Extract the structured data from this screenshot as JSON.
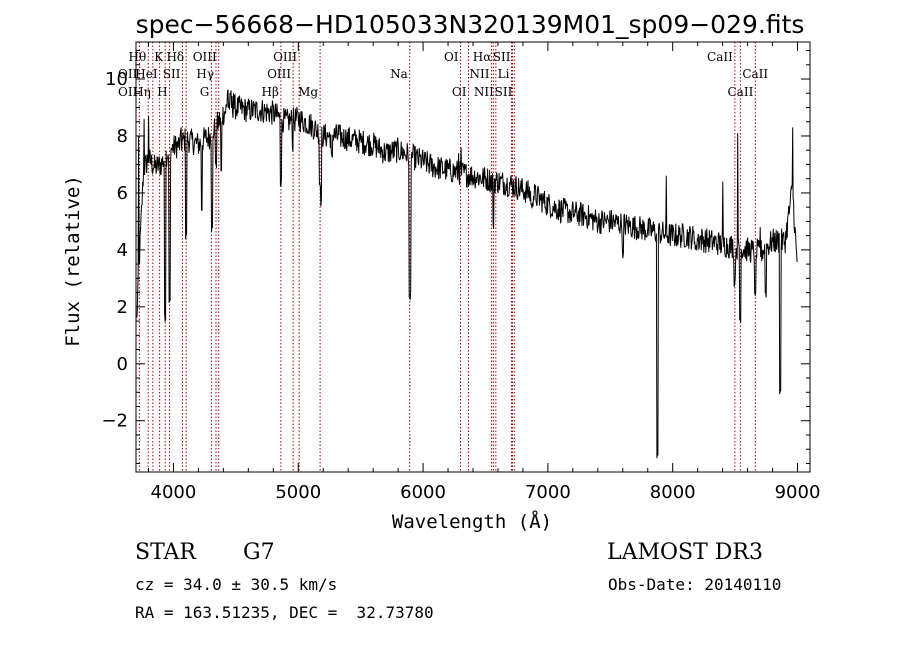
{
  "chart_data": {
    "type": "line",
    "title": "spec−56668−HD105033N320139M01_sp09−029.fits",
    "xlabel": "Wavelength (Å)",
    "ylabel": "Flux (relative)",
    "xlim": [
      3700,
      9100
    ],
    "ylim": [
      -3.8,
      11.3
    ],
    "xticks": [
      4000,
      5000,
      6000,
      7000,
      8000,
      9000
    ],
    "yticks": [
      -2,
      0,
      2,
      4,
      6,
      8,
      10
    ],
    "ytick_labels": [
      "−2",
      "0",
      "2",
      "4",
      "6",
      "8",
      "10"
    ],
    "grid": false,
    "line_color": "#000000",
    "marker_color": "#aa0000",
    "spectrum_knots": [
      [
        3700,
        1.0
      ],
      [
        3760,
        6.8
      ],
      [
        3800,
        7.2
      ],
      [
        3850,
        6.9
      ],
      [
        3900,
        7.0
      ],
      [
        3950,
        7.4
      ],
      [
        4000,
        7.6
      ],
      [
        4050,
        7.7
      ],
      [
        4100,
        7.9
      ],
      [
        4150,
        7.8
      ],
      [
        4200,
        7.7
      ],
      [
        4250,
        7.9
      ],
      [
        4300,
        8.0
      ],
      [
        4350,
        8.4
      ],
      [
        4400,
        8.8
      ],
      [
        4450,
        9.1
      ],
      [
        4500,
        9.0
      ],
      [
        4600,
        8.9
      ],
      [
        4700,
        8.9
      ],
      [
        4800,
        8.8
      ],
      [
        4900,
        8.5
      ],
      [
        5000,
        8.6
      ],
      [
        5100,
        8.4
      ],
      [
        5200,
        8.0
      ],
      [
        5300,
        8.0
      ],
      [
        5400,
        7.9
      ],
      [
        5500,
        7.8
      ],
      [
        5600,
        7.7
      ],
      [
        5700,
        7.4
      ],
      [
        5800,
        7.5
      ],
      [
        5900,
        7.3
      ],
      [
        6000,
        7.1
      ],
      [
        6100,
        6.9
      ],
      [
        6200,
        6.8
      ],
      [
        6300,
        6.7
      ],
      [
        6400,
        6.6
      ],
      [
        6500,
        6.5
      ],
      [
        6600,
        6.4
      ],
      [
        6700,
        6.3
      ],
      [
        6800,
        6.1
      ],
      [
        6900,
        5.9
      ],
      [
        7000,
        5.6
      ],
      [
        7100,
        5.4
      ],
      [
        7200,
        5.3
      ],
      [
        7300,
        5.2
      ],
      [
        7400,
        5.0
      ],
      [
        7500,
        5.0
      ],
      [
        7600,
        4.9
      ],
      [
        7700,
        4.8
      ],
      [
        7800,
        4.7
      ],
      [
        7900,
        4.6
      ],
      [
        8000,
        4.5
      ],
      [
        8100,
        4.5
      ],
      [
        8200,
        4.4
      ],
      [
        8300,
        4.3
      ],
      [
        8400,
        4.2
      ],
      [
        8500,
        4.1
      ],
      [
        8600,
        4.0
      ],
      [
        8700,
        3.9
      ],
      [
        8800,
        4.3
      ],
      [
        8900,
        4.3
      ],
      [
        8960,
        6.2
      ],
      [
        9000,
        3.2
      ]
    ],
    "spectrum_dips": [
      [
        3934,
        1.5
      ],
      [
        3969,
        2.0
      ],
      [
        4101,
        4.3
      ],
      [
        4227,
        5.3
      ],
      [
        4308,
        4.6
      ],
      [
        4340,
        6.8
      ],
      [
        4383,
        6.6
      ],
      [
        4861,
        6.2
      ],
      [
        4955,
        7.4
      ],
      [
        5172,
        6.2
      ],
      [
        5183,
        5.5
      ],
      [
        5270,
        7.2
      ],
      [
        5892,
        2.1
      ],
      [
        5896,
        2.3
      ],
      [
        6563,
        4.7
      ],
      [
        6870,
        5.4
      ],
      [
        7190,
        5.2
      ],
      [
        7600,
        3.7
      ],
      [
        7878,
        -3.4
      ],
      [
        8190,
        3.9
      ],
      [
        8498,
        2.7
      ],
      [
        8542,
        1.4
      ],
      [
        8662,
        2.2
      ],
      [
        8745,
        2.3
      ],
      [
        8860,
        -1.1
      ],
      [
        9005,
        0.2
      ]
    ],
    "spectrum_spikes": [
      [
        3720,
        8.0
      ],
      [
        3765,
        8.6
      ],
      [
        3800,
        8.7
      ],
      [
        4060,
        8.3
      ],
      [
        4435,
        9.6
      ],
      [
        4460,
        9.6
      ],
      [
        4480,
        9.5
      ],
      [
        5320,
        8.4
      ],
      [
        6285,
        7.4
      ],
      [
        6305,
        7.6
      ],
      [
        7950,
        6.6
      ],
      [
        8400,
        6.4
      ],
      [
        8520,
        8.1
      ],
      [
        8700,
        4.8
      ],
      [
        8960,
        8.3
      ]
    ],
    "spectrum_noise": 0.45,
    "line_markers": [
      {
        "label": "Hθ",
        "wavelength": 3798,
        "row": 1,
        "side": "left"
      },
      {
        "label": "OII",
        "wavelength": 3727,
        "row": 2,
        "side": "left"
      },
      {
        "label": "OII",
        "wavelength": 3727,
        "row": 3,
        "side": "left"
      },
      {
        "label": "Hη",
        "wavelength": 3835,
        "row": 3,
        "side": "left"
      },
      {
        "label": "K",
        "wavelength": 3934,
        "row": 1,
        "side": "left"
      },
      {
        "label": "HeI",
        "wavelength": 3889,
        "row": 2,
        "side": "left"
      },
      {
        "label": "SII",
        "wavelength": 4072,
        "row": 2,
        "side": "left"
      },
      {
        "label": "H",
        "wavelength": 3969,
        "row": 3,
        "side": "left"
      },
      {
        "label": "Hδ",
        "wavelength": 4102,
        "row": 1,
        "side": "left"
      },
      {
        "label": "OIII",
        "wavelength": 4363,
        "row": 1,
        "side": "left"
      },
      {
        "label": "Hγ",
        "wavelength": 4341,
        "row": 2,
        "side": "left"
      },
      {
        "label": "G",
        "wavelength": 4304,
        "row": 3,
        "side": "left"
      },
      {
        "label": "OIII",
        "wavelength": 5007,
        "row": 1,
        "side": "left"
      },
      {
        "label": "OIII",
        "wavelength": 4959,
        "row": 2,
        "side": "left"
      },
      {
        "label": "Hβ",
        "wavelength": 4861,
        "row": 3,
        "side": "left"
      },
      {
        "label": "Mg",
        "wavelength": 5175,
        "row": 3,
        "side": "left"
      },
      {
        "label": "Na",
        "wavelength": 5893,
        "row": 2,
        "side": "left"
      },
      {
        "label": "OI",
        "wavelength": 6300,
        "row": 1,
        "side": "left"
      },
      {
        "label": "OI",
        "wavelength": 6364,
        "row": 3,
        "side": "left"
      },
      {
        "label": "Hα",
        "wavelength": 6563,
        "row": 1,
        "side": "left"
      },
      {
        "label": "NII",
        "wavelength": 6548,
        "row": 2,
        "side": "left"
      },
      {
        "label": "NII",
        "wavelength": 6583,
        "row": 3,
        "side": "left"
      },
      {
        "label": "SII",
        "wavelength": 6716,
        "row": 1,
        "side": "left"
      },
      {
        "label": "Li",
        "wavelength": 6708,
        "row": 2,
        "side": "left"
      },
      {
        "label": "SII",
        "wavelength": 6731,
        "row": 3,
        "side": "left"
      },
      {
        "label": "CaII",
        "wavelength": 8498,
        "row": 1,
        "side": "left"
      },
      {
        "label": "CaII",
        "wavelength": 8542,
        "row": 2,
        "side": "right"
      },
      {
        "label": "CaII",
        "wavelength": 8662,
        "row": 3,
        "side": "left"
      }
    ]
  },
  "info": {
    "object_class": "STAR",
    "subclass": "G7",
    "survey": "LAMOST DR3",
    "redshift": "cz = 34.0 ± 30.5 km/s",
    "obs_date": "Obs-Date: 20140110",
    "coords": "RA = 163.51235, DEC =  32.73780"
  }
}
